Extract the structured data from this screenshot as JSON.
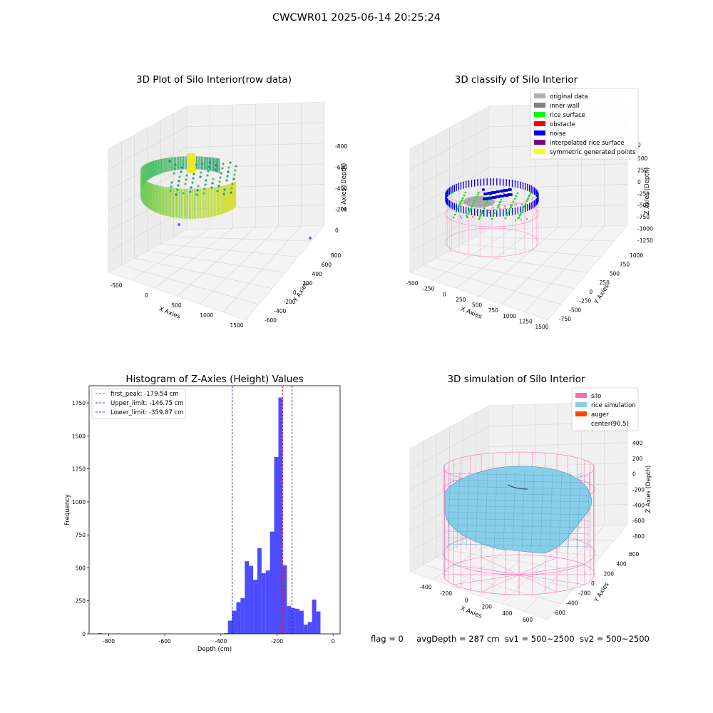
{
  "figure": {
    "suptitle": "CWCWR01 2025-06-14 20:25:24",
    "footer": {
      "flag": "flag = 0",
      "avg_depth": "avgDepth = 287 cm",
      "sv1": "sv1 = 500~2500",
      "sv2": "sv2 = 500~2500"
    }
  },
  "chart_data": [
    {
      "type": "scatter",
      "title": "3D Plot of Silo Interior(row data)",
      "xlabel": "X Axies",
      "ylabel": "Y Axies",
      "zlabel": "Z Axies (Depth)",
      "x_ticks": [
        "-500",
        "0",
        "500",
        "1000",
        "1500"
      ],
      "y_ticks": [
        "-600",
        "-400",
        "-200",
        "0",
        "200",
        "400",
        "600",
        "800"
      ],
      "z_ticks": [
        "0",
        "-200",
        "-400",
        "-600",
        "-800"
      ],
      "colormap": "viridis"
    },
    {
      "type": "scatter",
      "title": "3D classify of Silo Interior",
      "xlabel": "X Axies",
      "ylabel": "Y Axies",
      "zlabel": "Z Axies (Depth)",
      "x_ticks": [
        "-500",
        "-250",
        "0",
        "250",
        "500",
        "750",
        "1000",
        "1250",
        "1500"
      ],
      "y_ticks": [
        "-750",
        "-500",
        "-250",
        "0",
        "250",
        "500",
        "750",
        "1000"
      ],
      "z_ticks": [
        "500",
        "250",
        "0",
        "-250",
        "-500",
        "-750",
        "-1000",
        "-1250"
      ],
      "z_top_partial": "0",
      "legend": [
        {
          "label": "original data",
          "color": "#b0b0b0"
        },
        {
          "label": "inner wall",
          "color": "#808080"
        },
        {
          "label": "rice surface",
          "color": "#00ff00"
        },
        {
          "label": "obstacle",
          "color": "#ff0000"
        },
        {
          "label": "noise",
          "color": "#0000ff"
        },
        {
          "label": "interpolated rice surface",
          "color": "#800080"
        },
        {
          "label": "symmetric generated points",
          "color": "#ffff00"
        }
      ]
    },
    {
      "type": "bar",
      "title": "Histogram of Z-Axies (Height) Values",
      "xlabel": "Depth (cm)",
      "ylabel": "Frequency",
      "xlim": [
        -870,
        25
      ],
      "ylim": [
        0,
        1880
      ],
      "x_ticks": [
        -800,
        -600,
        -400,
        -200,
        0
      ],
      "y_ticks": [
        0,
        250,
        500,
        750,
        1000,
        1250,
        1500,
        1750
      ],
      "bin_width": 15,
      "bar_color": "#0000ff",
      "bins": [
        {
          "x": -840,
          "value": 6
        },
        {
          "x": -390,
          "value": 5
        },
        {
          "x": -375,
          "value": 100
        },
        {
          "x": -360,
          "value": 175
        },
        {
          "x": -345,
          "value": 240
        },
        {
          "x": -330,
          "value": 270
        },
        {
          "x": -315,
          "value": 550
        },
        {
          "x": -300,
          "value": 515
        },
        {
          "x": -285,
          "value": 410
        },
        {
          "x": -270,
          "value": 650
        },
        {
          "x": -255,
          "value": 460
        },
        {
          "x": -240,
          "value": 480
        },
        {
          "x": -225,
          "value": 775
        },
        {
          "x": -210,
          "value": 1340
        },
        {
          "x": -195,
          "value": 1790
        },
        {
          "x": -180,
          "value": 520
        },
        {
          "x": -165,
          "value": 210
        },
        {
          "x": -150,
          "value": 195
        },
        {
          "x": -135,
          "value": 190
        },
        {
          "x": -120,
          "value": 175
        },
        {
          "x": -105,
          "value": 70
        },
        {
          "x": -90,
          "value": 90
        },
        {
          "x": -75,
          "value": 260
        },
        {
          "x": -60,
          "value": 170
        }
      ],
      "vlines": [
        {
          "label": "first_peak: -179.54 cm",
          "x": -179.54,
          "color": "#ff0000"
        },
        {
          "label": "Upper_limit: -146.75 cm",
          "x": -146.75,
          "color": "#0000aa"
        },
        {
          "label": "Lower_limit: -359.87 cm",
          "x": -359.87,
          "color": "#0000aa"
        }
      ],
      "legend_position": "upper-left"
    },
    {
      "type": "surface",
      "title": "3D simulation of Silo Interior",
      "xlabel": "X Axies",
      "ylabel": "Y Axies",
      "zlabel": "Z Axies (Depth)",
      "x_ticks": [
        "-400",
        "-200",
        "0",
        "200",
        "400",
        "600"
      ],
      "y_ticks": [
        "-600",
        "-400",
        "-200",
        "0",
        "200",
        "400",
        "600"
      ],
      "z_ticks": [
        "400",
        "200",
        "0",
        "-200",
        "-400",
        "-600",
        "-800"
      ],
      "legend": [
        {
          "label": "silo",
          "color": "#ff69b4"
        },
        {
          "label": "rice simulation",
          "color": "#87ceeb"
        },
        {
          "label": "auger",
          "color": "#ff4500"
        },
        {
          "label": "center(90,5)",
          "color": "#ffffff"
        }
      ]
    }
  ]
}
